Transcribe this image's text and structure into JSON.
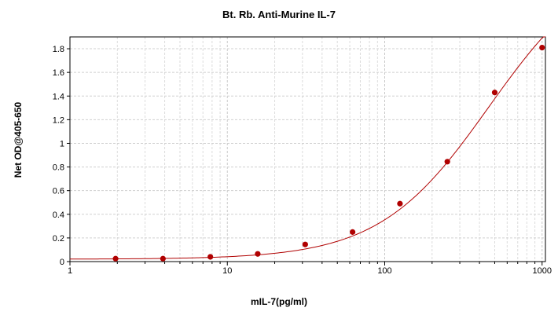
{
  "chart_data": {
    "type": "scatter",
    "title": "Bt. Rb. Anti-Murine IL-7",
    "xlabel": "mIL-7(pg/ml)",
    "ylabel": "Net OD@405-650",
    "xscale": "log",
    "xlim": [
      1,
      1050
    ],
    "ylim": [
      0,
      1.9
    ],
    "xticks": [
      1,
      10,
      100,
      1000
    ],
    "xtick_labels": [
      "1",
      "10",
      "100",
      "1000"
    ],
    "yticks": [
      0,
      0.2,
      0.4,
      0.6,
      0.8,
      1,
      1.2,
      1.4,
      1.6,
      1.8
    ],
    "ytick_labels": [
      "0",
      "0.2",
      "0.4",
      "0.6",
      "0.8",
      "1",
      "1.2",
      "1.4",
      "1.6",
      "1.8"
    ],
    "grid": true,
    "series": [
      {
        "x": [
          1.95,
          3.9,
          7.8,
          15.6,
          31.25,
          62.5,
          125,
          250,
          500,
          1000
        ],
        "y": [
          0.025,
          0.025,
          0.04,
          0.065,
          0.145,
          0.25,
          0.49,
          0.845,
          1.43,
          1.81
        ],
        "color": "#b00000"
      }
    ],
    "fit_curve": {
      "type": "4PL",
      "color": "#b00000",
      "bottom": 0.02,
      "top": 2.6,
      "ec50": 460,
      "hill": 1.25
    }
  }
}
